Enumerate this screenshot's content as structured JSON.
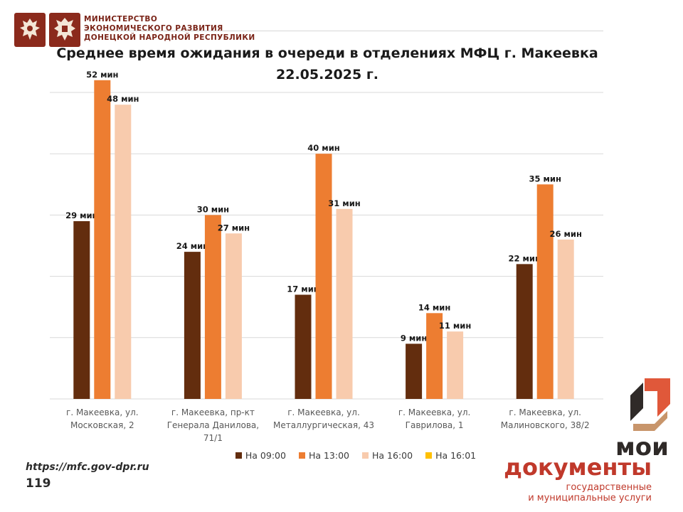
{
  "header": {
    "ministry_lines": [
      "МИНИСТЕРСТВО",
      "ЭКОНОМИЧЕСКОГО РАЗВИТИЯ",
      "ДОНЕЦКОЙ НАРОДНОЙ РЕСПУБЛИКИ"
    ]
  },
  "footer": {
    "url": "https://mfc.gov-dpr.ru",
    "page_number": "119"
  },
  "logo": {
    "word1": "мои",
    "word2": "документы",
    "sub_line1": "государственные",
    "sub_line2": "и муниципальные услуги"
  },
  "chart_data": {
    "type": "bar",
    "title_line1": "Среднее время ожидания в очереди в отделениях МФЦ г. Макеевка",
    "title_line2": "22.05.2025 г.",
    "categories": [
      "г. Макеевка, ул. Московская, 2",
      "г. Макеевка, пр-кт Генерала Данилова, 71/1",
      "г. Макеевка, ул. Металлургическая, 43",
      "г. Макеевка, ул. Гаврилова, 1",
      "г. Макеевка, ул. Малиновского, 38/2"
    ],
    "category_label_lines": [
      [
        "г. Макеевка, ул.",
        "Московская, 2"
      ],
      [
        "г. Макеевка, пр-кт",
        "Генерала Данилова,",
        "71/1"
      ],
      [
        "г. Макеевка, ул.",
        "Металлургическая, 43"
      ],
      [
        "г. Макеевка, ул.",
        "Гаврилова, 1"
      ],
      [
        "г. Макеевка, ул.",
        "Малиновского, 38/2"
      ]
    ],
    "series": [
      {
        "name": "На 09:00",
        "color": "#632d0e",
        "values": [
          29,
          24,
          17,
          9,
          22
        ]
      },
      {
        "name": "На 13:00",
        "color": "#ed7d31",
        "values": [
          52,
          30,
          40,
          14,
          35
        ]
      },
      {
        "name": "На 16:00",
        "color": "#f8cbad",
        "values": [
          48,
          27,
          31,
          11,
          26
        ]
      },
      {
        "name": "На 16:01",
        "color": "#ffc000",
        "values": [
          null,
          null,
          null,
          null,
          null
        ]
      }
    ],
    "value_suffix": " мин",
    "ylim": [
      0,
      50
    ],
    "gridlines": [
      0,
      10,
      20,
      30,
      40,
      50
    ],
    "y_axis_labels_shown": false,
    "grid": true,
    "legend_position": "bottom"
  },
  "colors": {
    "brand_red": "#c0392b",
    "emblem_red": "#8b2a1c",
    "gridline": "#d9d9d9"
  },
  "icons": [
    "coat-of-arms-russia-icon",
    "coat-of-arms-dnr-icon",
    "moi-dokumenty-logo-icon"
  ]
}
